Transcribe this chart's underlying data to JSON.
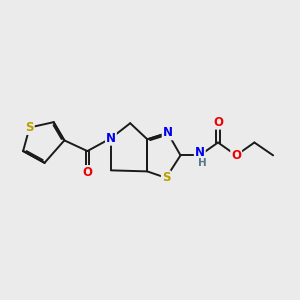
{
  "background_color": "#ebebeb",
  "bond_color": "#1a1a1a",
  "bond_width": 1.4,
  "atom_colors": {
    "S": "#b8a000",
    "N": "#0000ee",
    "O": "#ee0000",
    "H": "#557788",
    "C": "#1a1a1a"
  },
  "font_size_atom": 8.5,
  "font_size_small": 7.5
}
